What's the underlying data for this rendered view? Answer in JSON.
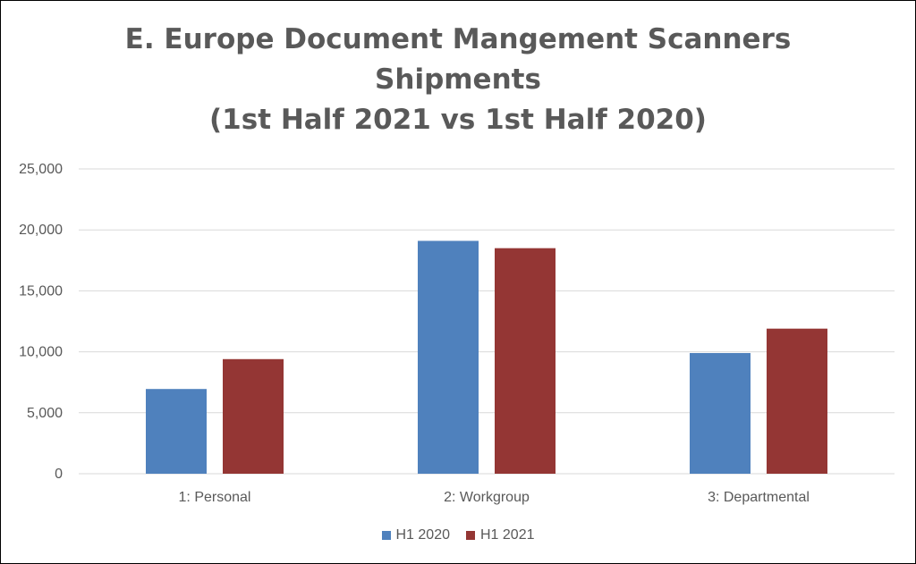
{
  "chart_data": {
    "type": "bar",
    "title_lines": [
      "E. Europe Document Mangement Scanners",
      "Shipments",
      "(1st Half 2021 vs 1st Half 2020)"
    ],
    "categories": [
      "1: Personal",
      "2: Workgroup",
      "3: Departmental"
    ],
    "series": [
      {
        "name": "H1 2020",
        "color": "#4F81BD",
        "values": [
          6950,
          19100,
          9900
        ]
      },
      {
        "name": "H1 2021",
        "color": "#943634",
        "values": [
          9400,
          18500,
          11900
        ]
      }
    ],
    "yticks": [
      0,
      5000,
      10000,
      15000,
      20000,
      25000
    ],
    "ytick_labels": [
      "0",
      "5,000",
      "10,000",
      "15,000",
      "20,000",
      "25,000"
    ],
    "ylim": [
      0,
      25000
    ],
    "xlabel": "",
    "ylabel": "",
    "grid": true,
    "legend_position": "bottom-center"
  }
}
